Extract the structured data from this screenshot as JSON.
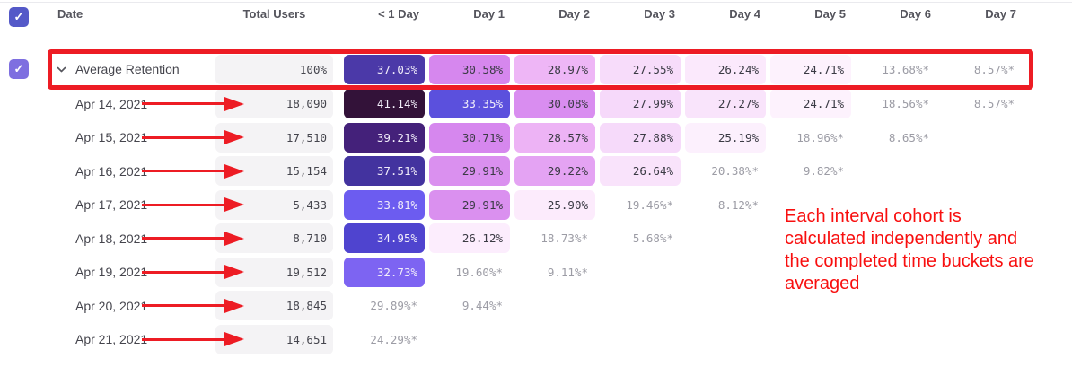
{
  "table": {
    "headers": {
      "date": "Date",
      "total_users": "Total Users",
      "days": [
        "< 1 Day",
        "Day 1",
        "Day 2",
        "Day 3",
        "Day 4",
        "Day 5",
        "Day 6",
        "Day 7"
      ]
    },
    "select_all_checked": true,
    "average_row": {
      "checked": true,
      "label": "Average Retention",
      "total": "100%",
      "cells": [
        {
          "value": "37.03%",
          "bg": "#4b39a8",
          "fg": "light"
        },
        {
          "value": "30.58%",
          "bg": "#d687ee",
          "fg": "dark"
        },
        {
          "value": "28.97%",
          "bg": "#eeb6f6",
          "fg": "dark"
        },
        {
          "value": "27.55%",
          "bg": "#f7dcfa",
          "fg": "dark"
        },
        {
          "value": "26.24%",
          "bg": "#fbe9fc",
          "fg": "dark"
        },
        {
          "value": "24.71%",
          "bg": "#fdf2fd",
          "fg": "dark"
        },
        {
          "value": "13.68%*",
          "bg": null,
          "fg": "muted"
        },
        {
          "value": "8.57%*",
          "bg": null,
          "fg": "muted"
        }
      ]
    },
    "rows": [
      {
        "date": "Apr 14, 2021",
        "total": "18,090",
        "cells": [
          {
            "value": "41.14%",
            "bg": "#331239",
            "fg": "light"
          },
          {
            "value": "33.35%",
            "bg": "#5b50dd",
            "fg": "light"
          },
          {
            "value": "30.08%",
            "bg": "#d98df0",
            "fg": "dark"
          },
          {
            "value": "27.99%",
            "bg": "#f6d9fa",
            "fg": "dark"
          },
          {
            "value": "27.27%",
            "bg": "#f9e4fb",
            "fg": "dark"
          },
          {
            "value": "24.71%",
            "bg": "#fdf2fd",
            "fg": "dark"
          },
          {
            "value": "18.56%*",
            "bg": null,
            "fg": "muted"
          },
          {
            "value": "8.57%*",
            "bg": null,
            "fg": "muted"
          }
        ]
      },
      {
        "date": "Apr 15, 2021",
        "total": "17,510",
        "cells": [
          {
            "value": "39.21%",
            "bg": "#44217a",
            "fg": "light"
          },
          {
            "value": "30.71%",
            "bg": "#d687ee",
            "fg": "dark"
          },
          {
            "value": "28.57%",
            "bg": "#edb3f5",
            "fg": "dark"
          },
          {
            "value": "27.88%",
            "bg": "#f6dafa",
            "fg": "dark"
          },
          {
            "value": "25.19%",
            "bg": "#fcf0fd",
            "fg": "dark"
          },
          {
            "value": "18.96%*",
            "bg": null,
            "fg": "muted"
          },
          {
            "value": "8.65%*",
            "bg": null,
            "fg": "muted"
          }
        ]
      },
      {
        "date": "Apr 16, 2021",
        "total": "15,154",
        "cells": [
          {
            "value": "37.51%",
            "bg": "#43339f",
            "fg": "light"
          },
          {
            "value": "29.91%",
            "bg": "#da90ef",
            "fg": "dark"
          },
          {
            "value": "29.22%",
            "bg": "#e4a3f3",
            "fg": "dark"
          },
          {
            "value": "26.64%",
            "bg": "#f9e3fb",
            "fg": "dark"
          },
          {
            "value": "20.38%*",
            "bg": null,
            "fg": "muted"
          },
          {
            "value": "9.82%*",
            "bg": null,
            "fg": "muted"
          }
        ]
      },
      {
        "date": "Apr 17, 2021",
        "total": "5,433",
        "cells": [
          {
            "value": "33.81%",
            "bg": "#6c5cf0",
            "fg": "light"
          },
          {
            "value": "29.91%",
            "bg": "#da90ef",
            "fg": "dark"
          },
          {
            "value": "25.90%",
            "bg": "#fcebfc",
            "fg": "dark"
          },
          {
            "value": "19.46%*",
            "bg": null,
            "fg": "muted"
          },
          {
            "value": "8.12%*",
            "bg": null,
            "fg": "muted"
          }
        ]
      },
      {
        "date": "Apr 18, 2021",
        "total": "8,710",
        "cells": [
          {
            "value": "34.95%",
            "bg": "#4f44cf",
            "fg": "light"
          },
          {
            "value": "26.12%",
            "bg": "#fcedfd",
            "fg": "dark"
          },
          {
            "value": "18.73%*",
            "bg": null,
            "fg": "muted"
          },
          {
            "value": "5.68%*",
            "bg": null,
            "fg": "muted"
          }
        ]
      },
      {
        "date": "Apr 19, 2021",
        "total": "19,512",
        "cells": [
          {
            "value": "32.73%",
            "bg": "#7d64f2",
            "fg": "light"
          },
          {
            "value": "19.60%*",
            "bg": null,
            "fg": "muted"
          },
          {
            "value": "9.11%*",
            "bg": null,
            "fg": "muted"
          }
        ]
      },
      {
        "date": "Apr 20, 2021",
        "total": "18,845",
        "cells": [
          {
            "value": "29.89%*",
            "bg": null,
            "fg": "muted"
          },
          {
            "value": "9.44%*",
            "bg": null,
            "fg": "muted"
          }
        ]
      },
      {
        "date": "Apr 21, 2021",
        "total": "14,651",
        "cells": [
          {
            "value": "24.29%*",
            "bg": null,
            "fg": "muted"
          }
        ]
      }
    ]
  },
  "annotation": {
    "lines": [
      "Each interval cohort is",
      "calculated independently and",
      "the completed time buckets are",
      "averaged"
    ],
    "check_glyph": "✓"
  },
  "colors": {
    "annotation_red": "#ed1c24",
    "annotation_text_red": "#f80f0f",
    "header_checkbox": "#5459c8",
    "row_checkbox": "#7e6fe0",
    "total_cell_bg": "#f4f3f5"
  }
}
